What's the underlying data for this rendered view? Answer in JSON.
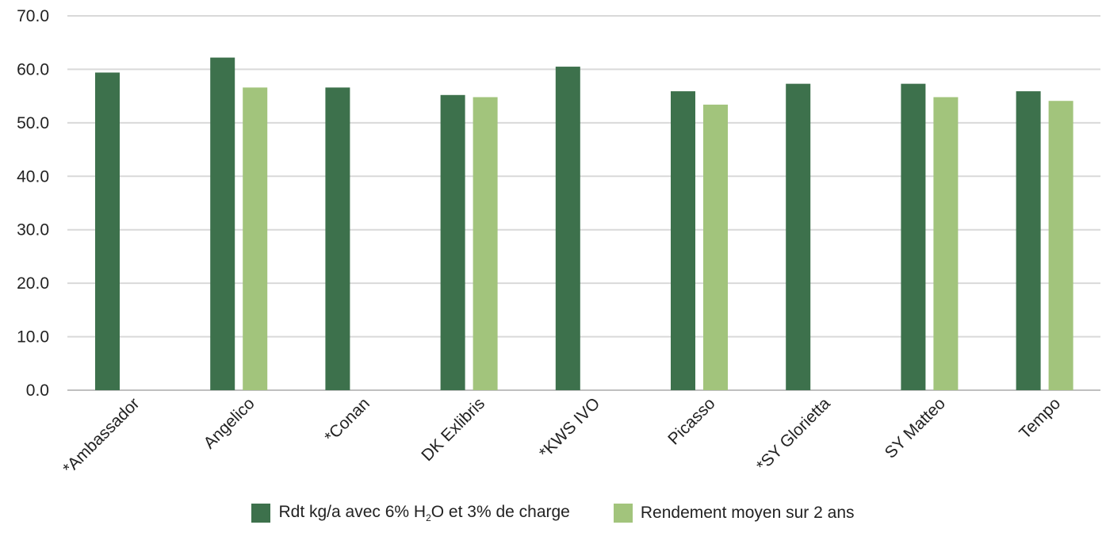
{
  "chart_data": {
    "type": "bar",
    "categories": [
      "*Ambassador",
      "Angelico",
      "*Conan",
      "DK Exlibris",
      "*KWS IVO",
      "Picasso",
      "*SY Glorietta",
      "SY Matteo",
      "Tempo"
    ],
    "series": [
      {
        "name": "Rdt kg/a avec 6% H2O et 3% de charge",
        "color": "#3d714c",
        "values": [
          59.4,
          62.2,
          56.6,
          55.2,
          60.5,
          55.9,
          57.3,
          57.3,
          55.9
        ]
      },
      {
        "name": "Rendement moyen sur 2 ans",
        "color": "#a2c47c",
        "values": [
          null,
          56.6,
          null,
          54.8,
          null,
          53.4,
          null,
          54.8,
          54.1
        ]
      }
    ],
    "ylim": [
      0,
      70
    ],
    "yticks": [
      "0.0",
      "10.0",
      "20.0",
      "30.0",
      "40.0",
      "50.0",
      "60.0",
      "70.0"
    ],
    "grid": true,
    "legend_position": "bottom"
  },
  "legend": {
    "item1": {
      "pre": "Rdt kg/a avec 6% H",
      "sub": "2",
      "post": "O et 3% de charge"
    },
    "item2": "Rendement moyen sur 2 ans"
  }
}
